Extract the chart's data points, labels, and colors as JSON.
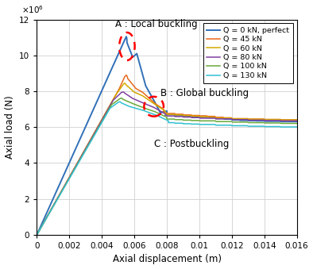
{
  "title": "",
  "xlabel": "Axial displacement (m)",
  "ylabel": "Axial load (N)",
  "xlim": [
    0,
    0.016
  ],
  "ylim": [
    0,
    12000000
  ],
  "grid": true,
  "annotation_A": "A : Local buckling",
  "annotation_B": "B : Global buckling",
  "annotation_C": "C : Postbuckling",
  "legend_labels": [
    "Q = 0 kN, perfect",
    "Q = 45 kN",
    "Q = 60 kN",
    "Q = 80 kN",
    "Q = 100 kN",
    "Q = 130 kN"
  ],
  "line_colors": [
    "#3070b8",
    "#e8681a",
    "#d4a800",
    "#8040a0",
    "#6aaa3a",
    "#30c0d0"
  ],
  "line_widths": [
    1.4,
    1.1,
    1.1,
    1.1,
    1.1,
    1.1
  ],
  "figsize": [
    3.94,
    3.39
  ],
  "dpi": 100
}
